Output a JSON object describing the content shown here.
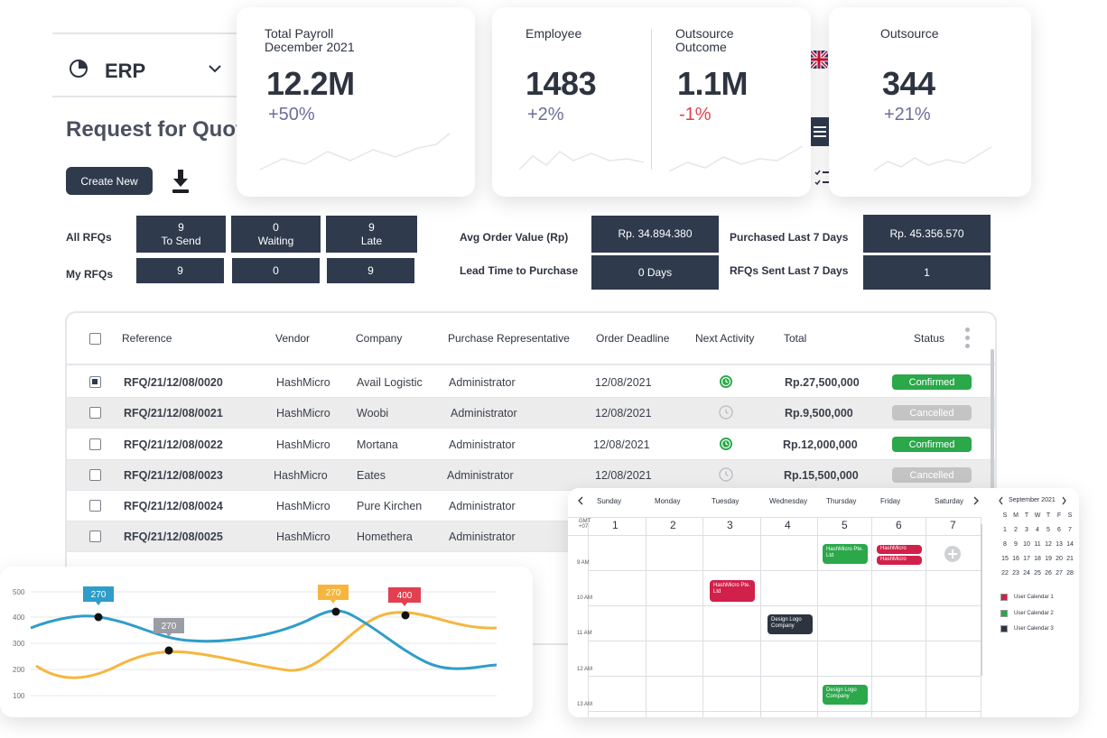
{
  "app": {
    "module_label": "ERP",
    "page_title": "Request for Quot",
    "create_button": "Create New"
  },
  "kpis": {
    "payroll": {
      "label_line1": "Total Payroll",
      "label_line2": "December 2021",
      "value": "12.2M",
      "change": "+50%"
    },
    "employee": {
      "label": "Employee",
      "value": "1483",
      "change": "+2%"
    },
    "outsource_outcome": {
      "label_line1": "Outsource",
      "label_line2": "Outcome",
      "value": "1.1M",
      "change": "-1%"
    },
    "outsource": {
      "label": "Outsource",
      "value": "344",
      "change": "+21%"
    }
  },
  "stats": {
    "all_rfqs_label": "All RFQs",
    "my_rfqs_label": "My RFQs",
    "to_send": {
      "count": "9",
      "label": "To Send"
    },
    "waiting": {
      "count": "0",
      "label": "Waiting"
    },
    "late": {
      "count": "9",
      "label": "Late"
    },
    "my_to_send": "9",
    "my_waiting": "0",
    "my_late": "9",
    "avg_order_label": "Avg Order Value (Rp)",
    "avg_order_value": "Rp. 34.894.380",
    "lead_time_label": "Lead Time to Purchase",
    "lead_time_value": "0 Days",
    "purchased_label": "Purchased Last 7 Days",
    "purchased_value": "Rp. 45.356.570",
    "rfqs_sent_label": "RFQs Sent Last 7 Days",
    "rfqs_sent_value": "1"
  },
  "table": {
    "headers": {
      "reference": "Reference",
      "vendor": "Vendor",
      "company": "Company",
      "rep": "Purchase Representative",
      "deadline": "Order Deadline",
      "activity": "Next Activity",
      "total": "Total",
      "status": "Status"
    },
    "rows": [
      {
        "ref": "RFQ/21/12/08/0020",
        "vendor": "HashMicro",
        "company": "Avail Logistic",
        "rep": "Administrator",
        "deadline": "12/08/2021",
        "total": "Rp.27,500,000",
        "status": "Confirmed"
      },
      {
        "ref": "RFQ/21/12/08/0021",
        "vendor": "HashMicro",
        "company": "Woobi",
        "rep": "Administrator",
        "deadline": "12/08/2021",
        "total": "Rp.9,500,000",
        "status": "Cancelled"
      },
      {
        "ref": "RFQ/21/12/08/0022",
        "vendor": "HashMicro",
        "company": "Mortana",
        "rep": "Administrator",
        "deadline": "12/08/2021",
        "total": "Rp.12,000,000",
        "status": "Confirmed"
      },
      {
        "ref": "RFQ/21/12/08/0023",
        "vendor": "HashMicro",
        "company": "Eates",
        "rep": "Administrator",
        "deadline": "12/08/2021",
        "total": "Rp.15,500,000",
        "status": "Cancelled"
      },
      {
        "ref": "RFQ/21/12/08/0024",
        "vendor": "HashMicro",
        "company": "Pure Kirchen",
        "rep": "Administrator"
      },
      {
        "ref": "RFQ/21/12/08/0025",
        "vendor": "HashMicro",
        "company": "Homethera",
        "rep": "Administrator"
      }
    ]
  },
  "colors": {
    "navy": "#2f3a4d",
    "confirmed": "#2aa84a",
    "cancelled": "#c4c4c4",
    "blue_series": "#2f9dc9",
    "orange_series": "#f6b63e",
    "red_label": "#e0404f"
  },
  "chart_data": {
    "type": "line",
    "ylim": [
      100,
      500
    ],
    "yticks": [
      "500",
      "400",
      "300",
      "200",
      "100"
    ],
    "series": [
      {
        "name": "blue",
        "color": "#2f9dc9"
      },
      {
        "name": "orange",
        "color": "#f6b63e"
      }
    ],
    "annotations": [
      {
        "label": "270",
        "color": "#2f9dc9"
      },
      {
        "label": "270",
        "color": "#9a9da3"
      },
      {
        "label": "270",
        "color": "#f6b63e"
      },
      {
        "label": "400",
        "color": "#e0404f"
      }
    ]
  },
  "calendar": {
    "days": [
      "Sunday",
      "Monday",
      "Tuesday",
      "Wednesday",
      "Thursday",
      "Friday",
      "Saturday"
    ],
    "dates": [
      "1",
      "2",
      "3",
      "4",
      "5",
      "6",
      "7"
    ],
    "gmt_label": "GMT +07",
    "times": [
      "9 AM",
      "10 AM",
      "11 AM",
      "12 AM",
      "13 AM"
    ],
    "events": [
      {
        "text": "HashMicro Pte. Ltd",
        "color": "#d1204a"
      },
      {
        "text": "Design Logo Company",
        "color": "#2d3440"
      },
      {
        "text": "HashMicro Pte. Ltd",
        "color": "#2aa84a"
      },
      {
        "text": "HashMicro",
        "color": "#d1204a"
      },
      {
        "text": "HashMicro",
        "color": "#d1204a"
      },
      {
        "text": "Design Logo Company",
        "color": "#2aa84a"
      }
    ],
    "mini_title": "September 2021",
    "mini_weekdays": [
      "S",
      "M",
      "T",
      "W",
      "T",
      "F",
      "S"
    ],
    "mini_rows": [
      [
        "1",
        "2",
        "3",
        "4",
        "5",
        "6",
        "7"
      ],
      [
        "8",
        "9",
        "10",
        "11",
        "12",
        "13",
        "14"
      ],
      [
        "15",
        "16",
        "17",
        "18",
        "19",
        "20",
        "21"
      ],
      [
        "22",
        "23",
        "24",
        "25",
        "26",
        "27",
        "28"
      ]
    ],
    "legend": [
      {
        "label": "User Calendar 1",
        "color": "#d1204a"
      },
      {
        "label": "User Calendar 2",
        "color": "#2aa84a"
      },
      {
        "label": "User Calendar 3",
        "color": "#2d3440"
      }
    ]
  }
}
